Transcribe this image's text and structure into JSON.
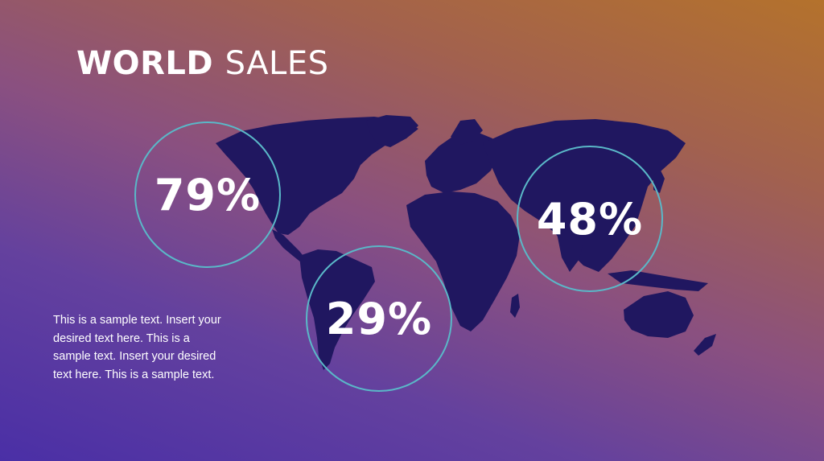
{
  "slide": {
    "title_bold": "WORLD",
    "title_rest": "SALES",
    "stats": {
      "north_america": "79%",
      "south_america": "29%",
      "asia": "48%"
    },
    "body_text": "This is a sample text. Insert your desired text here. This is a sample text. Insert your desired text here. This is a sample text."
  },
  "colors": {
    "map_land": "#201760",
    "circle_stroke": "#5ab8c8",
    "text": "#ffffff"
  }
}
